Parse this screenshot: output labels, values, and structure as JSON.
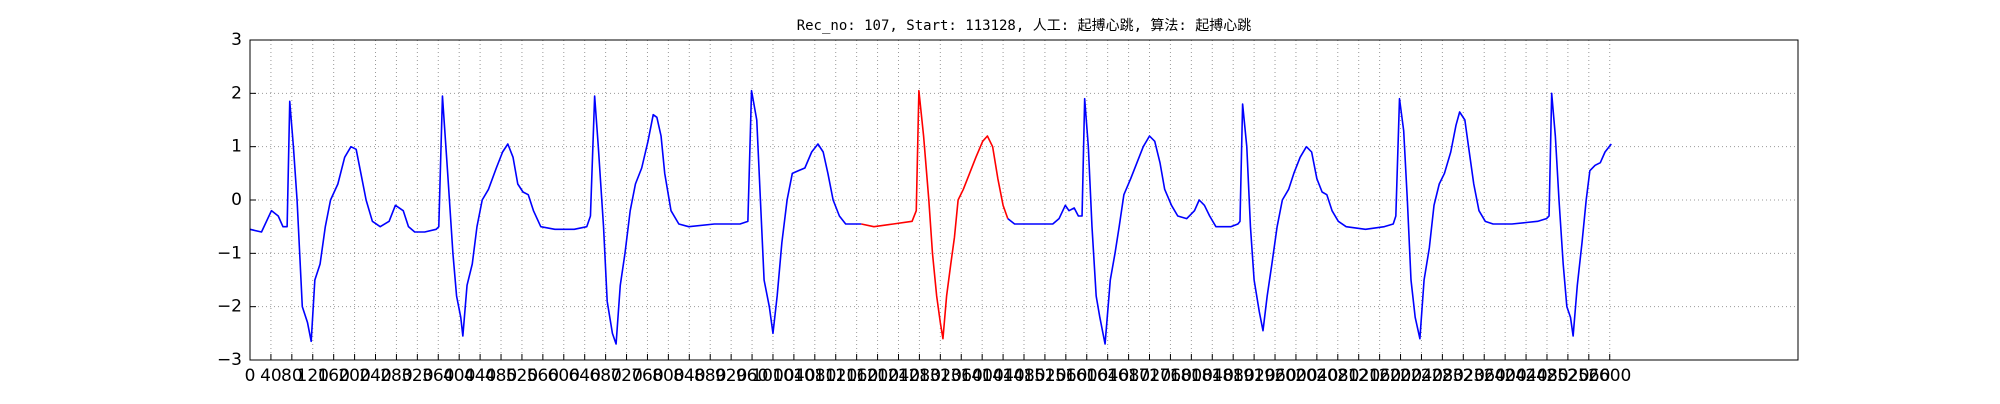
{
  "chart_data": {
    "type": "line",
    "title": "Rec_no: 107, Start: 113128, 人工: 起搏心跳, 算法: 起搏心跳",
    "xlim": [
      0,
      2960
    ],
    "xticks": [
      0,
      40,
      80,
      120,
      160,
      200,
      240,
      280,
      320,
      360,
      400,
      440,
      480,
      520,
      560,
      600,
      640,
      680,
      720,
      760,
      800,
      840,
      880,
      920,
      960,
      1000,
      1040,
      1080,
      1120,
      1160,
      1200,
      1240,
      1280,
      1320,
      1360,
      1400,
      1440,
      1480,
      1520,
      1560,
      1600,
      1640,
      1680,
      1720,
      1760,
      1800,
      1840,
      1880,
      1920,
      1960,
      2000,
      2040,
      2080,
      2120,
      2160,
      2200,
      2240,
      2280,
      2320,
      2360,
      2400,
      2440,
      2480,
      2520,
      2560,
      2600
    ],
    "ylim": [
      -3,
      3
    ],
    "yticks": [
      {
        "value": -3,
        "label": "−3"
      },
      {
        "value": -2,
        "label": "−2"
      },
      {
        "value": -1,
        "label": "−1"
      },
      0,
      1,
      2,
      3
    ],
    "grid": true,
    "series": [
      {
        "color": "#0000ff",
        "x": [
          0,
          22,
          41,
          54,
          63,
          71,
          76,
          83,
          90,
          100,
          110,
          117,
          124,
          134,
          144,
          154,
          168,
          181,
          193,
          203,
          212,
          222,
          234,
          249,
          266,
          278,
          293,
          303,
          315,
          334,
          356,
          361,
          368,
          378,
          388,
          395,
          403,
          407,
          415,
          425,
          434,
          444,
          456,
          471,
          483,
          493,
          503,
          512,
          522,
          532,
          542,
          556,
          583,
          620,
          644,
          651,
          659,
          666,
          676,
          683,
          693,
          700,
          708,
          717,
          727,
          737,
          749,
          761,
          771,
          778,
          786,
          793,
          805,
          820,
          839,
          888,
          937,
          952,
          959,
          969,
          976,
          983,
          993,
          1000,
          1008,
          1017,
          1027,
          1037,
          1049,
          1061,
          1074,
          1086,
          1096,
          1105,
          1115,
          1127,
          1139,
          1169
        ],
        "values": [
          -0.55,
          -0.6,
          -0.2,
          -0.3,
          -0.5,
          -0.5,
          1.85,
          1.0,
          0,
          -2.0,
          -2.3,
          -2.65,
          -1.5,
          -1.2,
          -0.5,
          0,
          0.3,
          0.8,
          1.0,
          0.95,
          0.5,
          0,
          -0.4,
          -0.5,
          -0.4,
          -0.1,
          -0.2,
          -0.5,
          -0.6,
          -0.6,
          -0.55,
          -0.5,
          1.95,
          0.5,
          -1.0,
          -1.8,
          -2.2,
          -2.55,
          -1.6,
          -1.2,
          -0.5,
          0,
          0.2,
          0.6,
          0.9,
          1.05,
          0.8,
          0.3,
          0.15,
          0.1,
          -0.2,
          -0.5,
          -0.55,
          -0.55,
          -0.5,
          -0.3,
          1.95,
          1.0,
          -0.5,
          -1.9,
          -2.5,
          -2.7,
          -1.6,
          -1.0,
          -0.2,
          0.3,
          0.6,
          1.1,
          1.6,
          1.55,
          1.2,
          0.5,
          -0.2,
          -0.45,
          -0.5,
          -0.45,
          -0.45,
          -0.4,
          2.05,
          1.5,
          0,
          -1.5,
          -2.0,
          -2.5,
          -1.8,
          -0.8,
          0,
          0.5,
          0.55,
          0.6,
          0.9,
          1.05,
          0.9,
          0.5,
          0,
          -0.3,
          -0.45,
          -0.45
        ]
      },
      {
        "color": "#ff0000",
        "x": [
          1169,
          1193,
          1230,
          1266,
          1274,
          1279,
          1288,
          1298,
          1305,
          1313,
          1320,
          1325,
          1332,
          1340,
          1347,
          1354,
          1364,
          1376,
          1388,
          1401,
          1410,
          1420,
          1430,
          1440,
          1449
        ],
        "values": [
          -0.45,
          -0.5,
          -0.45,
          -0.4,
          -0.2,
          2.05,
          1.2,
          0,
          -1.0,
          -1.8,
          -2.3,
          -2.6,
          -1.8,
          -1.2,
          -0.7,
          0,
          0.2,
          0.5,
          0.8,
          1.1,
          1.2,
          1.0,
          0.4,
          -0.1,
          -0.35
        ]
      },
      {
        "color": "#0000ff",
        "x": [
          1449,
          1462,
          1498,
          1535,
          1547,
          1559,
          1566,
          1576,
          1584,
          1591,
          1596,
          1603,
          1610,
          1618,
          1625,
          1635,
          1645,
          1654,
          1662,
          1671,
          1684,
          1696,
          1708,
          1720,
          1730,
          1740,
          1749,
          1762,
          1774,
          1791,
          1806,
          1815,
          1825,
          1835,
          1847,
          1876,
          1889,
          1893,
          1898,
          1906,
          1913,
          1920,
          1930,
          1937,
          1945,
          1954,
          1964,
          1974,
          1986,
          1996,
          2008,
          2020,
          2030,
          2040,
          2050,
          2059,
          2069,
          2081,
          2096,
          2133,
          2169,
          2186,
          2191,
          2198,
          2206,
          2213,
          2220,
          2228,
          2237,
          2245,
          2255,
          2264,
          2274,
          2284,
          2296,
          2306,
          2313,
          2323,
          2330,
          2340,
          2350,
          2362,
          2377,
          2413,
          2462,
          2479,
          2484,
          2489,
          2496,
          2503,
          2511,
          2518,
          2525,
          2530,
          2538,
          2547,
          2555,
          2562,
          2572,
          2582,
          2591,
          2603
        ],
        "values": [
          -0.35,
          -0.45,
          -0.45,
          -0.45,
          -0.35,
          -0.1,
          -0.2,
          -0.15,
          -0.3,
          -0.3,
          1.9,
          1.0,
          -0.5,
          -1.8,
          -2.2,
          -2.7,
          -1.5,
          -1.0,
          -0.5,
          0.1,
          0.4,
          0.7,
          1.0,
          1.2,
          1.1,
          0.7,
          0.2,
          -0.1,
          -0.3,
          -0.35,
          -0.2,
          0,
          -0.1,
          -0.3,
          -0.5,
          -0.5,
          -0.45,
          -0.4,
          1.8,
          1.0,
          -0.5,
          -1.5,
          -2.1,
          -2.45,
          -1.8,
          -1.2,
          -0.5,
          0,
          0.2,
          0.5,
          0.8,
          1.0,
          0.9,
          0.4,
          0.15,
          0.1,
          -0.2,
          -0.4,
          -0.5,
          -0.55,
          -0.5,
          -0.45,
          -0.3,
          1.9,
          1.3,
          0,
          -1.5,
          -2.2,
          -2.6,
          -1.5,
          -0.9,
          -0.1,
          0.3,
          0.5,
          0.9,
          1.4,
          1.65,
          1.5,
          1.0,
          0.3,
          -0.2,
          -0.4,
          -0.45,
          -0.45,
          -0.4,
          -0.35,
          -0.3,
          2.0,
          1.2,
          0,
          -1.2,
          -2.0,
          -2.2,
          -2.55,
          -1.6,
          -0.8,
          0,
          0.55,
          0.65,
          0.7,
          0.9,
          1.05
        ]
      }
    ]
  }
}
